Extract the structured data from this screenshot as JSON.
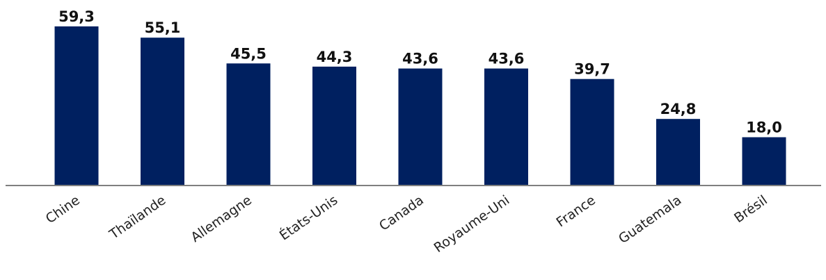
{
  "chart_data": {
    "type": "bar",
    "title": "",
    "xlabel": "",
    "ylabel": "",
    "categories": [
      "Chine",
      "Thaïlande",
      "Allemagne",
      "États-Unis",
      "Canada",
      "Royaume-Uni",
      "France",
      "Guatemala",
      "Brésil"
    ],
    "values": [
      59.3,
      55.1,
      45.5,
      44.3,
      43.6,
      43.6,
      39.7,
      24.8,
      18.0
    ],
    "value_labels": [
      "59,3",
      "55,1",
      "45,5",
      "44,3",
      "43,6",
      "43,6",
      "39,7",
      "24,8",
      "18,0"
    ],
    "ylim": [
      0,
      60
    ],
    "grid": false,
    "legend": "none",
    "colors": {
      "bar": "#002060",
      "axis": "#7f7f7f"
    }
  }
}
